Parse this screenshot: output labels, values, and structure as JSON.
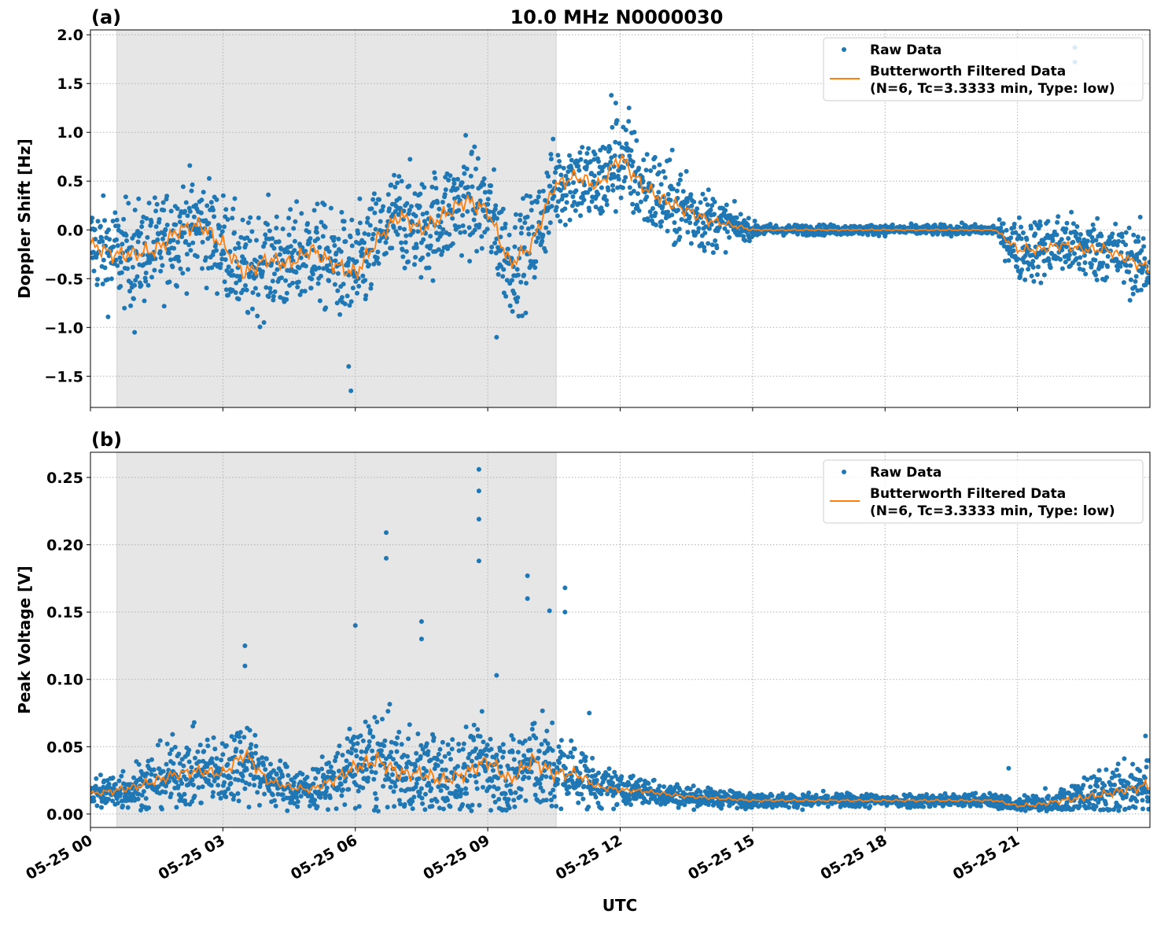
{
  "figure_title": "10.0 MHz N0000030",
  "x_axis_label": "UTC",
  "colors": {
    "raw": "#1f77b4",
    "filtered": "#ff7f0e",
    "shade": "#e6e6e6",
    "grid": "#b0b0b0"
  },
  "legend": {
    "raw": "Raw Data",
    "filtered_line1": "Butterworth Filtered Data",
    "filtered_line2": "(N=6, Tc=3.3333 min, Type: low)"
  },
  "chart_data": [
    {
      "type": "scatter",
      "panel_label": "(a)",
      "ylabel": "Doppler Shift [Hz]",
      "xlim_hours": [
        0,
        24
      ],
      "ylim": [
        -1.82,
        2.05
      ],
      "yticks": [
        -1.5,
        -1.0,
        -0.5,
        0.0,
        0.5,
        1.0,
        1.5,
        2.0
      ],
      "ytick_labels": [
        "−1.5",
        "−1.0",
        "−0.5",
        "0.0",
        "0.5",
        "1.0",
        "1.5",
        "2.0"
      ],
      "xtick_labels": [
        "05-25 00",
        "05-25 03",
        "05-25 06",
        "05-25 09",
        "05-25 12",
        "05-25 15",
        "05-25 18",
        "05-25 21"
      ],
      "xtick_hours": [
        0,
        3,
        6,
        9,
        12,
        15,
        18,
        21
      ],
      "shaded_interval_hours": [
        0.6,
        10.55
      ],
      "grid": true,
      "legend_position": "upper-right",
      "time_step_hours": 0.5,
      "filtered": [
        -0.15,
        -0.25,
        -0.25,
        -0.2,
        0.0,
        0.05,
        -0.15,
        -0.45,
        -0.3,
        -0.35,
        -0.2,
        -0.35,
        -0.45,
        -0.1,
        0.15,
        0.0,
        0.15,
        0.3,
        0.2,
        -0.35,
        -0.15,
        0.45,
        0.55,
        0.45,
        0.75,
        0.45,
        0.3,
        0.2,
        0.1,
        0.05,
        0.0,
        0.0,
        0.0,
        0.0,
        0.0,
        0.0,
        0.0,
        0.0,
        0.0,
        0.0,
        0.0,
        0.0,
        -0.2,
        -0.2,
        -0.15,
        -0.2,
        -0.2,
        -0.3,
        -0.4
      ],
      "raw_spread": [
        0.35,
        0.4,
        0.4,
        0.4,
        0.4,
        0.4,
        0.4,
        0.4,
        0.4,
        0.4,
        0.4,
        0.4,
        0.45,
        0.4,
        0.4,
        0.4,
        0.4,
        0.4,
        0.4,
        0.4,
        0.4,
        0.35,
        0.35,
        0.35,
        0.4,
        0.35,
        0.35,
        0.3,
        0.25,
        0.15,
        0.06,
        0.04,
        0.04,
        0.04,
        0.04,
        0.04,
        0.04,
        0.04,
        0.04,
        0.04,
        0.04,
        0.04,
        0.25,
        0.25,
        0.25,
        0.25,
        0.25,
        0.25,
        0.3
      ],
      "raw_outliers": [
        [
          5.9,
          -1.65
        ],
        [
          5.85,
          -1.4
        ],
        [
          9.2,
          -1.1
        ],
        [
          8.5,
          0.97
        ],
        [
          11.8,
          1.38
        ],
        [
          11.9,
          1.3
        ],
        [
          12.2,
          1.25
        ],
        [
          22.3,
          1.87
        ],
        [
          22.3,
          1.72
        ],
        [
          1.0,
          -1.05
        ],
        [
          13.5,
          0.6
        ]
      ]
    },
    {
      "type": "scatter",
      "panel_label": "(b)",
      "ylabel": "Peak Voltage [V]",
      "xlim_hours": [
        0,
        24
      ],
      "ylim": [
        -0.01,
        0.2687
      ],
      "yticks": [
        0.0,
        0.05,
        0.1,
        0.15,
        0.2,
        0.25
      ],
      "ytick_labels": [
        "0.00",
        "0.05",
        "0.10",
        "0.15",
        "0.20",
        "0.25"
      ],
      "xtick_labels": [
        "05-25 00",
        "05-25 03",
        "05-25 06",
        "05-25 09",
        "05-25 12",
        "05-25 15",
        "05-25 18",
        "05-25 21"
      ],
      "xtick_hours": [
        0,
        3,
        6,
        9,
        12,
        15,
        18,
        21
      ],
      "shaded_interval_hours": [
        0.6,
        10.55
      ],
      "grid": true,
      "legend_position": "upper-right",
      "time_step_hours": 0.5,
      "filtered": [
        0.015,
        0.017,
        0.02,
        0.025,
        0.03,
        0.032,
        0.03,
        0.045,
        0.025,
        0.02,
        0.018,
        0.025,
        0.035,
        0.04,
        0.03,
        0.03,
        0.025,
        0.03,
        0.04,
        0.025,
        0.04,
        0.03,
        0.03,
        0.02,
        0.018,
        0.017,
        0.015,
        0.013,
        0.012,
        0.011,
        0.01,
        0.01,
        0.01,
        0.01,
        0.01,
        0.01,
        0.01,
        0.01,
        0.01,
        0.01,
        0.01,
        0.01,
        0.006,
        0.007,
        0.01,
        0.012,
        0.015,
        0.018,
        0.022
      ],
      "raw_spread": [
        0.01,
        0.012,
        0.014,
        0.018,
        0.02,
        0.02,
        0.02,
        0.025,
        0.015,
        0.012,
        0.012,
        0.018,
        0.025,
        0.03,
        0.025,
        0.025,
        0.025,
        0.025,
        0.03,
        0.025,
        0.03,
        0.025,
        0.02,
        0.012,
        0.01,
        0.008,
        0.007,
        0.006,
        0.005,
        0.005,
        0.004,
        0.004,
        0.004,
        0.004,
        0.004,
        0.004,
        0.004,
        0.004,
        0.004,
        0.004,
        0.004,
        0.004,
        0.006,
        0.008,
        0.01,
        0.012,
        0.014,
        0.016,
        0.02
      ],
      "raw_outliers": [
        [
          3.5,
          0.125
        ],
        [
          3.5,
          0.11
        ],
        [
          6.0,
          0.14
        ],
        [
          6.7,
          0.209
        ],
        [
          6.7,
          0.19
        ],
        [
          7.5,
          0.143
        ],
        [
          7.5,
          0.13
        ],
        [
          8.8,
          0.256
        ],
        [
          8.8,
          0.24
        ],
        [
          8.8,
          0.219
        ],
        [
          8.8,
          0.188
        ],
        [
          9.2,
          0.103
        ],
        [
          9.9,
          0.177
        ],
        [
          9.9,
          0.16
        ],
        [
          10.4,
          0.151
        ],
        [
          10.75,
          0.168
        ],
        [
          10.75,
          0.15
        ],
        [
          11.3,
          0.075
        ],
        [
          20.8,
          0.034
        ],
        [
          23.9,
          0.058
        ]
      ]
    }
  ]
}
